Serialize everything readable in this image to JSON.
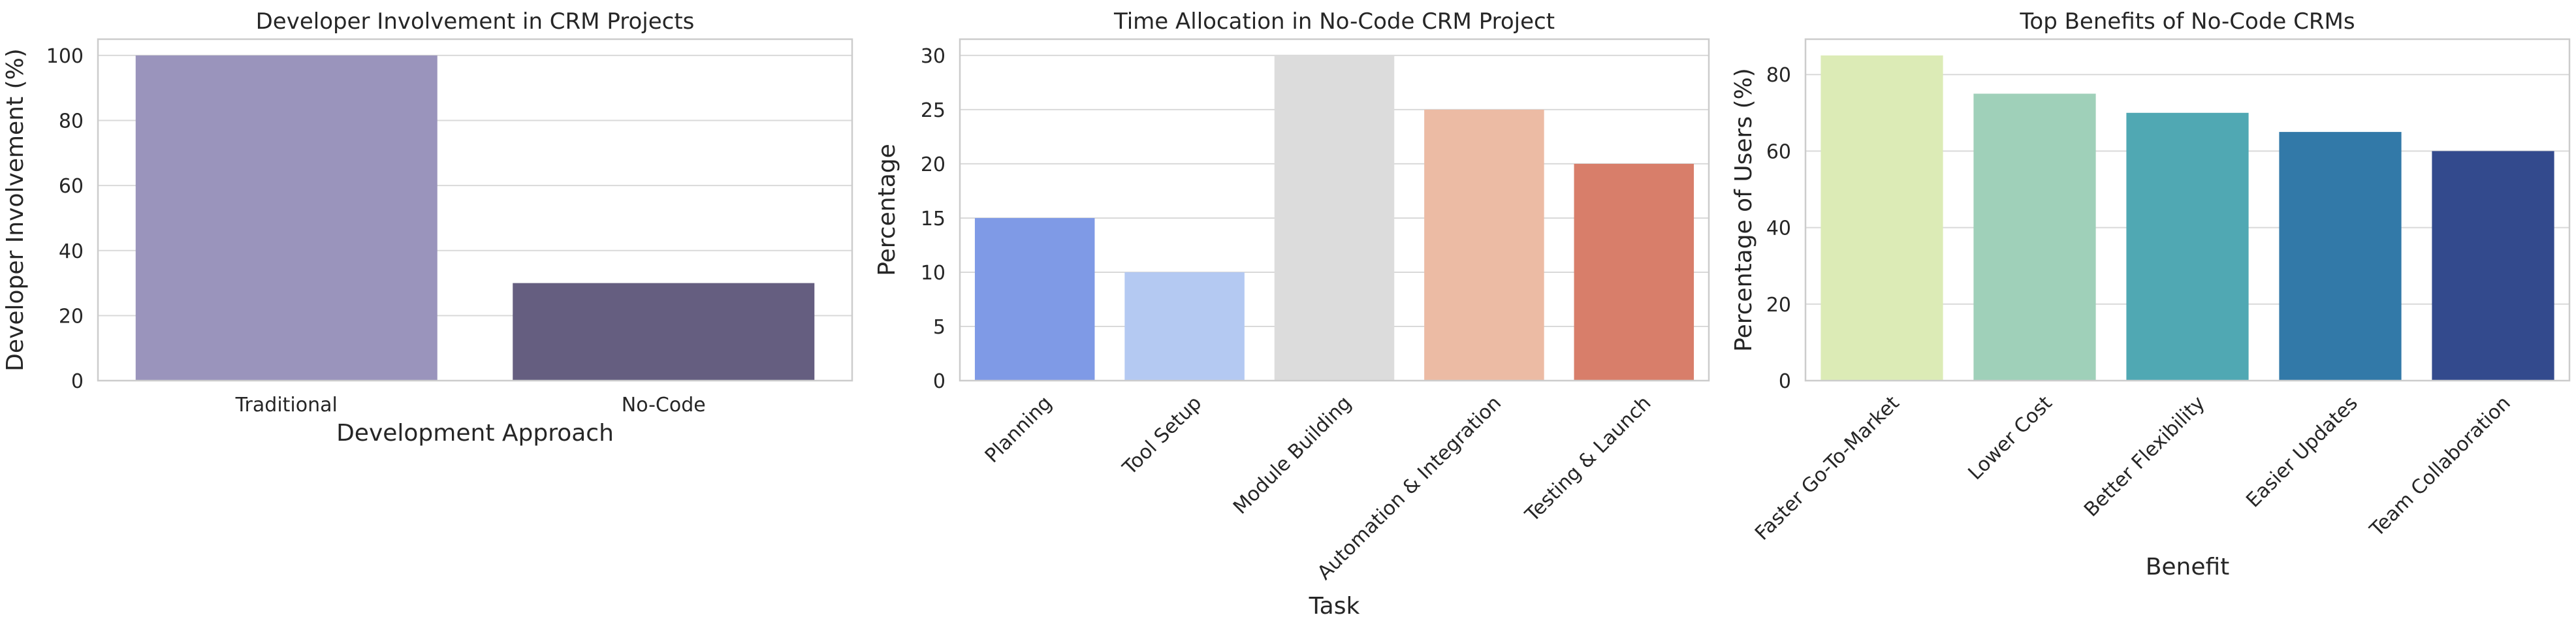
{
  "chart_data": [
    {
      "type": "bar",
      "title": "Developer Involvement in CRM Projects",
      "xlabel": "Development Approach",
      "ylabel": "Developer Involvement (%)",
      "categories": [
        "Traditional",
        "No-Code"
      ],
      "values": [
        100,
        30
      ],
      "colors": [
        "#9a94bc",
        "#655e80"
      ],
      "ylim": [
        0,
        105
      ],
      "yticks": [
        0,
        20,
        40,
        60,
        80,
        100
      ],
      "grid": true,
      "xtick_rotation": 0
    },
    {
      "type": "bar",
      "title": "Time Allocation in No-Code CRM Project",
      "xlabel": "Task",
      "ylabel": "Percentage",
      "categories": [
        "Planning",
        "Tool Setup",
        "Module Building",
        "Automation & Integration",
        "Testing & Launch"
      ],
      "values": [
        15,
        10,
        30,
        25,
        20
      ],
      "colors": [
        "#7f9ae6",
        "#b4c9f2",
        "#dcdcdc",
        "#ecbba4",
        "#d87e6a"
      ],
      "ylim": [
        0,
        31.5
      ],
      "yticks": [
        0,
        5,
        10,
        15,
        20,
        25,
        30
      ],
      "grid": true,
      "xtick_rotation": -45
    },
    {
      "type": "bar",
      "title": "Top Benefits of No-Code CRMs",
      "xlabel": "Benefit",
      "ylabel": "Percentage of Users (%)",
      "categories": [
        "Faster Go-To-Market",
        "Lower Cost",
        "Better Flexibility",
        "Easier Updates",
        "Team Collaboration"
      ],
      "values": [
        85,
        75,
        70,
        65,
        60
      ],
      "colors": [
        "#dcebb6",
        "#9fd0b9",
        "#50a8b3",
        "#3279a8",
        "#334a8d"
      ],
      "ylim": [
        0,
        89.25
      ],
      "yticks": [
        0,
        20,
        40,
        60,
        80
      ],
      "grid": true,
      "xtick_rotation": -45
    }
  ]
}
